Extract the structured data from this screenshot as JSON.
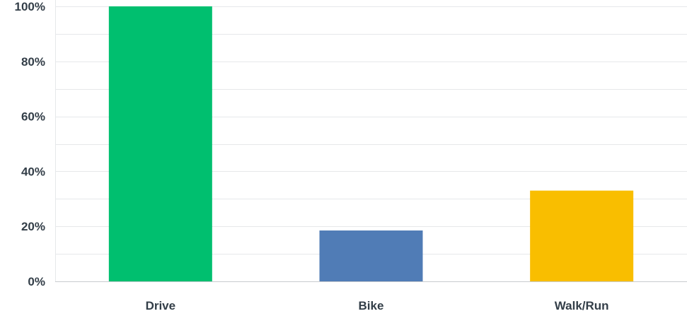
{
  "chart_data": {
    "type": "bar",
    "categories": [
      "Drive",
      "Bike",
      "Walk/Run"
    ],
    "values": [
      100,
      18.5,
      33
    ],
    "colors": [
      "#00bf6f",
      "#507cb6",
      "#f9be00"
    ],
    "yticks": [
      "0%",
      "20%",
      "40%",
      "60%",
      "80%",
      "100%"
    ],
    "ylim": [
      0,
      100
    ],
    "grid": true,
    "title": "",
    "xlabel": "",
    "ylabel": ""
  }
}
